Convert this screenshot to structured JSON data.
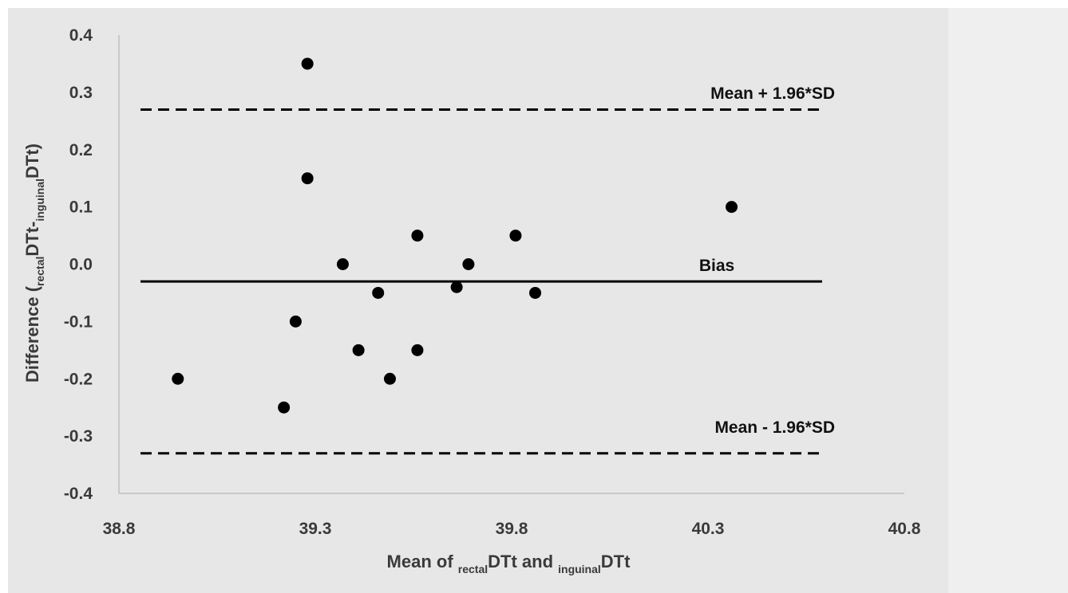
{
  "chart_data": {
    "type": "scatter",
    "xlabel": {
      "prefix": "Mean of ",
      "sub1": "rectal",
      "mid": "DTt and ",
      "sub2": "inguinal",
      "suffix": "DTt"
    },
    "ylabel": {
      "prefix": "Difference (",
      "sub1": "rectal",
      "mid": "DTt-",
      "sub2": "inguinal",
      "suffix": "DTt)"
    },
    "xlim": [
      38.8,
      40.8
    ],
    "ylim": [
      -0.4,
      0.4
    ],
    "x_ticks": [
      "38.8",
      "39.3",
      "39.8",
      "40.3",
      "40.8"
    ],
    "y_ticks": [
      "0.4",
      "0.3",
      "0.2",
      "0.1",
      "0.0",
      "-0.1",
      "-0.2",
      "-0.3",
      "-0.4"
    ],
    "reference_lines": {
      "upper": {
        "label": "Mean + 1.96*SD",
        "value": 0.27,
        "style": "dashed"
      },
      "bias": {
        "label": "Bias",
        "value": -0.03,
        "style": "solid"
      },
      "lower": {
        "label": "Mean - 1.96*SD",
        "value": -0.33,
        "style": "dashed"
      }
    },
    "grid": false,
    "points": [
      {
        "x": 38.95,
        "y": -0.2
      },
      {
        "x": 39.22,
        "y": -0.25
      },
      {
        "x": 39.25,
        "y": -0.1
      },
      {
        "x": 39.28,
        "y": 0.35
      },
      {
        "x": 39.28,
        "y": 0.15
      },
      {
        "x": 39.37,
        "y": 0.0
      },
      {
        "x": 39.41,
        "y": -0.15
      },
      {
        "x": 39.46,
        "y": -0.05
      },
      {
        "x": 39.49,
        "y": -0.2
      },
      {
        "x": 39.56,
        "y": 0.05
      },
      {
        "x": 39.56,
        "y": -0.15
      },
      {
        "x": 39.66,
        "y": -0.04
      },
      {
        "x": 39.69,
        "y": 0.0
      },
      {
        "x": 39.81,
        "y": 0.05
      },
      {
        "x": 39.86,
        "y": -0.05
      },
      {
        "x": 40.36,
        "y": 0.1
      }
    ],
    "colors": {
      "points": "#000000",
      "lines": "#000000",
      "axis": "#bfbfbf"
    }
  }
}
